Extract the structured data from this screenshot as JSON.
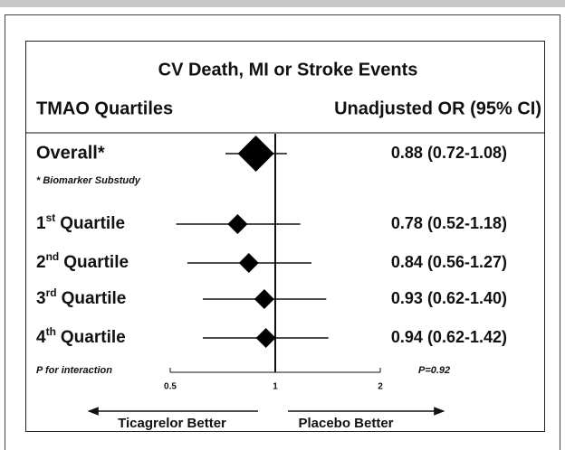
{
  "chart_data": {
    "type": "forest",
    "title": "CV Death, MI or Stroke Events",
    "left_header": "TMAO Quartiles",
    "right_header": "Unadjusted OR (95% CI)",
    "overall": {
      "label": "Overall*",
      "estimate": 0.88,
      "lower": 0.72,
      "upper": 1.08,
      "value_label": "0.88 (0.72-1.08)"
    },
    "footnote": "* Biomarker Substudy",
    "rows": [
      {
        "ordinal": "1",
        "suffix": "st",
        "label": "Quartile",
        "estimate": 0.78,
        "lower": 0.52,
        "upper": 1.18,
        "value_label": "0.78 (0.52-1.18)"
      },
      {
        "ordinal": "2",
        "suffix": "nd",
        "label": "Quartile",
        "estimate": 0.84,
        "lower": 0.56,
        "upper": 1.27,
        "value_label": "0.84 (0.56-1.27)"
      },
      {
        "ordinal": "3",
        "suffix": "rd",
        "label": "Quartile",
        "estimate": 0.93,
        "lower": 0.62,
        "upper": 1.4,
        "value_label": "0.93 (0.62-1.40)"
      },
      {
        "ordinal": "4",
        "suffix": "th",
        "label": "Quartile",
        "estimate": 0.94,
        "lower": 0.62,
        "upper": 1.42,
        "value_label": "0.94 (0.62-1.42)"
      }
    ],
    "interaction_label": "P for interaction",
    "interaction_value": "P=0.92",
    "xscale": "log",
    "xlim": [
      0.5,
      2
    ],
    "xticks": [
      0.5,
      1,
      2
    ],
    "left_arrow_label": "Ticagrelor Better",
    "right_arrow_label": "Placebo Better"
  }
}
